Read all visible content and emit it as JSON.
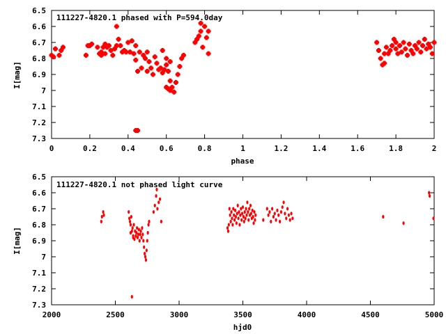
{
  "chart_data": [
    {
      "type": "scatter",
      "title": "111227-4820.1 phased with P=594.0day",
      "xlabel": "phase",
      "ylabel": "I[mag]",
      "xlim": [
        0,
        2
      ],
      "ylim": [
        6.5,
        7.3
      ],
      "y_inverted": true,
      "grid": false,
      "x_ticks": [
        "0",
        "0.2",
        "0.4",
        "0.6",
        "0.8",
        "1",
        "1.2",
        "1.4",
        "1.6",
        "1.8",
        "2"
      ],
      "y_ticks": [
        "6.5",
        "6.6",
        "6.7",
        "6.8",
        "6.9",
        "7",
        "7.1",
        "7.2",
        "7.3"
      ],
      "marker": "cross",
      "series": [
        {
          "color": "#ff0000",
          "points": [
            [
              0.0,
              6.78
            ],
            [
              0.01,
              6.79
            ],
            [
              0.02,
              6.74
            ],
            [
              0.04,
              6.78
            ],
            [
              0.05,
              6.75
            ],
            [
              0.06,
              6.73
            ],
            [
              0.18,
              6.78
            ],
            [
              0.19,
              6.72
            ],
            [
              0.2,
              6.72
            ],
            [
              0.21,
              6.71
            ],
            [
              0.24,
              6.73
            ],
            [
              0.25,
              6.77
            ],
            [
              0.26,
              6.78
            ],
            [
              0.26,
              6.76
            ],
            [
              0.27,
              6.73
            ],
            [
              0.28,
              6.71
            ],
            [
              0.28,
              6.77
            ],
            [
              0.29,
              6.73
            ],
            [
              0.3,
              6.72
            ],
            [
              0.31,
              6.75
            ],
            [
              0.32,
              6.78
            ],
            [
              0.33,
              6.74
            ],
            [
              0.34,
              6.72
            ],
            [
              0.34,
              6.6
            ],
            [
              0.35,
              6.68
            ],
            [
              0.36,
              6.72
            ],
            [
              0.37,
              6.76
            ],
            [
              0.38,
              6.75
            ],
            [
              0.39,
              6.76
            ],
            [
              0.4,
              6.7
            ],
            [
              0.41,
              6.76
            ],
            [
              0.42,
              6.69
            ],
            [
              0.43,
              6.77
            ],
            [
              0.44,
              6.72
            ],
            [
              0.44,
              6.81
            ],
            [
              0.45,
              6.88
            ],
            [
              0.46,
              6.76
            ],
            [
              0.47,
              6.86
            ],
            [
              0.48,
              6.78
            ],
            [
              0.49,
              6.8
            ],
            [
              0.5,
              6.76
            ],
            [
              0.5,
              6.88
            ],
            [
              0.51,
              6.82
            ],
            [
              0.52,
              6.86
            ],
            [
              0.53,
              6.9
            ],
            [
              0.54,
              6.79
            ],
            [
              0.55,
              6.83
            ],
            [
              0.56,
              6.87
            ],
            [
              0.57,
              6.86
            ],
            [
              0.58,
              6.89
            ],
            [
              0.59,
              6.87
            ],
            [
              0.6,
              6.84
            ],
            [
              0.61,
              6.88
            ],
            [
              0.62,
              6.82
            ],
            [
              0.58,
              6.75
            ],
            [
              0.6,
              6.8
            ],
            [
              0.62,
              6.94
            ],
            [
              0.6,
              6.98
            ],
            [
              0.61,
              6.99
            ],
            [
              0.62,
              7.0
            ],
            [
              0.63,
              6.98
            ],
            [
              0.64,
              7.01
            ],
            [
              0.65,
              6.95
            ],
            [
              0.66,
              6.9
            ],
            [
              0.67,
              6.85
            ],
            [
              0.68,
              6.8
            ],
            [
              0.69,
              6.78
            ],
            [
              0.75,
              6.7
            ],
            [
              0.76,
              6.68
            ],
            [
              0.77,
              6.66
            ],
            [
              0.78,
              6.63
            ],
            [
              0.78,
              6.58
            ],
            [
              0.79,
              6.73
            ],
            [
              0.8,
              6.6
            ],
            [
              0.81,
              6.67
            ],
            [
              0.82,
              6.77
            ],
            [
              0.82,
              6.63
            ],
            [
              0.44,
              7.25
            ],
            [
              0.45,
              7.25
            ],
            [
              1.7,
              6.7
            ],
            [
              1.71,
              6.75
            ],
            [
              1.72,
              6.8
            ],
            [
              1.73,
              6.84
            ],
            [
              1.74,
              6.77
            ],
            [
              1.74,
              6.83
            ],
            [
              1.75,
              6.73
            ],
            [
              1.76,
              6.77
            ],
            [
              1.77,
              6.75
            ],
            [
              1.78,
              6.72
            ],
            [
              1.79,
              6.68
            ],
            [
              1.8,
              6.7
            ],
            [
              1.8,
              6.74
            ],
            [
              1.81,
              6.77
            ],
            [
              1.82,
              6.72
            ],
            [
              1.83,
              6.76
            ],
            [
              1.84,
              6.7
            ],
            [
              1.85,
              6.74
            ],
            [
              1.86,
              6.78
            ],
            [
              1.87,
              6.71
            ],
            [
              1.88,
              6.75
            ],
            [
              1.89,
              6.77
            ],
            [
              1.9,
              6.72
            ],
            [
              1.91,
              6.74
            ],
            [
              1.92,
              6.7
            ],
            [
              1.93,
              6.76
            ],
            [
              1.94,
              6.72
            ],
            [
              1.95,
              6.68
            ],
            [
              1.96,
              6.74
            ],
            [
              1.97,
              6.71
            ],
            [
              1.98,
              6.73
            ],
            [
              1.99,
              6.77
            ],
            [
              2.0,
              6.7
            ]
          ]
        }
      ]
    },
    {
      "type": "scatter",
      "title": "111227-4820.1 not phased light curve",
      "xlabel": "hjd0",
      "ylabel": "I[mag]",
      "xlim": [
        2000,
        5000
      ],
      "ylim": [
        6.5,
        7.3
      ],
      "y_inverted": true,
      "grid": false,
      "x_ticks": [
        "2000",
        "2500",
        "3000",
        "3500",
        "4000",
        "4500",
        "5000"
      ],
      "y_ticks": [
        "6.5",
        "6.6",
        "6.7",
        "6.8",
        "6.9",
        "7",
        "7.1",
        "7.2",
        "7.3"
      ],
      "marker": "dot",
      "series": [
        {
          "color": "#ff0000",
          "points": [
            [
              2390,
              6.78
            ],
            [
              2395,
              6.75
            ],
            [
              2405,
              6.72
            ],
            [
              2410,
              6.74
            ],
            [
              2605,
              6.72
            ],
            [
              2610,
              6.76
            ],
            [
              2615,
              6.78
            ],
            [
              2620,
              6.8
            ],
            [
              2625,
              6.75
            ],
            [
              2630,
              6.84
            ],
            [
              2635,
              6.82
            ],
            [
              2640,
              6.87
            ],
            [
              2645,
              6.8
            ],
            [
              2650,
              6.89
            ],
            [
              2655,
              6.84
            ],
            [
              2660,
              6.87
            ],
            [
              2665,
              6.85
            ],
            [
              2670,
              6.82
            ],
            [
              2675,
              6.88
            ],
            [
              2680,
              6.86
            ],
            [
              2685,
              6.83
            ],
            [
              2690,
              6.9
            ],
            [
              2695,
              6.86
            ],
            [
              2700,
              6.84
            ],
            [
              2705,
              6.88
            ],
            [
              2710,
              6.82
            ],
            [
              2715,
              6.86
            ],
            [
              2720,
              6.9
            ],
            [
              2725,
              6.94
            ],
            [
              2730,
              6.98
            ],
            [
              2735,
              7.0
            ],
            [
              2740,
              7.02
            ],
            [
              2745,
              6.96
            ],
            [
              2750,
              6.9
            ],
            [
              2755,
              6.85
            ],
            [
              2760,
              6.8
            ],
            [
              2765,
              6.78
            ],
            [
              2800,
              6.72
            ],
            [
              2810,
              6.68
            ],
            [
              2820,
              6.62
            ],
            [
              2825,
              6.58
            ],
            [
              2830,
              6.7
            ],
            [
              2840,
              6.66
            ],
            [
              2850,
              6.64
            ],
            [
              2860,
              6.78
            ],
            [
              2630,
              7.25
            ],
            [
              2620,
              6.85
            ],
            [
              2640,
              6.88
            ],
            [
              3380,
              6.82
            ],
            [
              3385,
              6.84
            ],
            [
              3390,
              6.8
            ],
            [
              3395,
              6.7
            ],
            [
              3400,
              6.74
            ],
            [
              3405,
              6.78
            ],
            [
              3410,
              6.72
            ],
            [
              3415,
              6.76
            ],
            [
              3420,
              6.8
            ],
            [
              3425,
              6.7
            ],
            [
              3430,
              6.74
            ],
            [
              3435,
              6.77
            ],
            [
              3440,
              6.71
            ],
            [
              3445,
              6.75
            ],
            [
              3450,
              6.79
            ],
            [
              3455,
              6.73
            ],
            [
              3460,
              6.68
            ],
            [
              3465,
              6.76
            ],
            [
              3470,
              6.72
            ],
            [
              3475,
              6.8
            ],
            [
              3480,
              6.74
            ],
            [
              3485,
              6.7
            ],
            [
              3490,
              6.77
            ],
            [
              3495,
              6.73
            ],
            [
              3500,
              6.69
            ],
            [
              3505,
              6.75
            ],
            [
              3510,
              6.78
            ],
            [
              3515,
              6.72
            ],
            [
              3520,
              6.76
            ],
            [
              3525,
              6.7
            ],
            [
              3530,
              6.74
            ],
            [
              3535,
              6.66
            ],
            [
              3540,
              6.72
            ],
            [
              3545,
              6.77
            ],
            [
              3550,
              6.7
            ],
            [
              3555,
              6.74
            ],
            [
              3560,
              6.68
            ],
            [
              3565,
              6.73
            ],
            [
              3570,
              6.76
            ],
            [
              3575,
              6.71
            ],
            [
              3580,
              6.75
            ],
            [
              3585,
              6.79
            ],
            [
              3590,
              6.72
            ],
            [
              3595,
              6.77
            ],
            [
              3600,
              6.74
            ],
            [
              3660,
              6.77
            ],
            [
              3690,
              6.7
            ],
            [
              3700,
              6.74
            ],
            [
              3710,
              6.72
            ],
            [
              3720,
              6.78
            ],
            [
              3730,
              6.7
            ],
            [
              3740,
              6.75
            ],
            [
              3750,
              6.73
            ],
            [
              3760,
              6.77
            ],
            [
              3770,
              6.71
            ],
            [
              3780,
              6.74
            ],
            [
              3790,
              6.78
            ],
            [
              3800,
              6.72
            ],
            [
              3810,
              6.69
            ],
            [
              3820,
              6.66
            ],
            [
              3830,
              6.73
            ],
            [
              3840,
              6.76
            ],
            [
              3850,
              6.7
            ],
            [
              3860,
              6.74
            ],
            [
              3870,
              6.77
            ],
            [
              3880,
              6.73
            ],
            [
              3890,
              6.76
            ],
            [
              4600,
              6.75
            ],
            [
              4760,
              6.79
            ],
            [
              4960,
              6.6
            ],
            [
              4965,
              6.62
            ],
            [
              4995,
              6.76
            ]
          ]
        }
      ]
    }
  ]
}
